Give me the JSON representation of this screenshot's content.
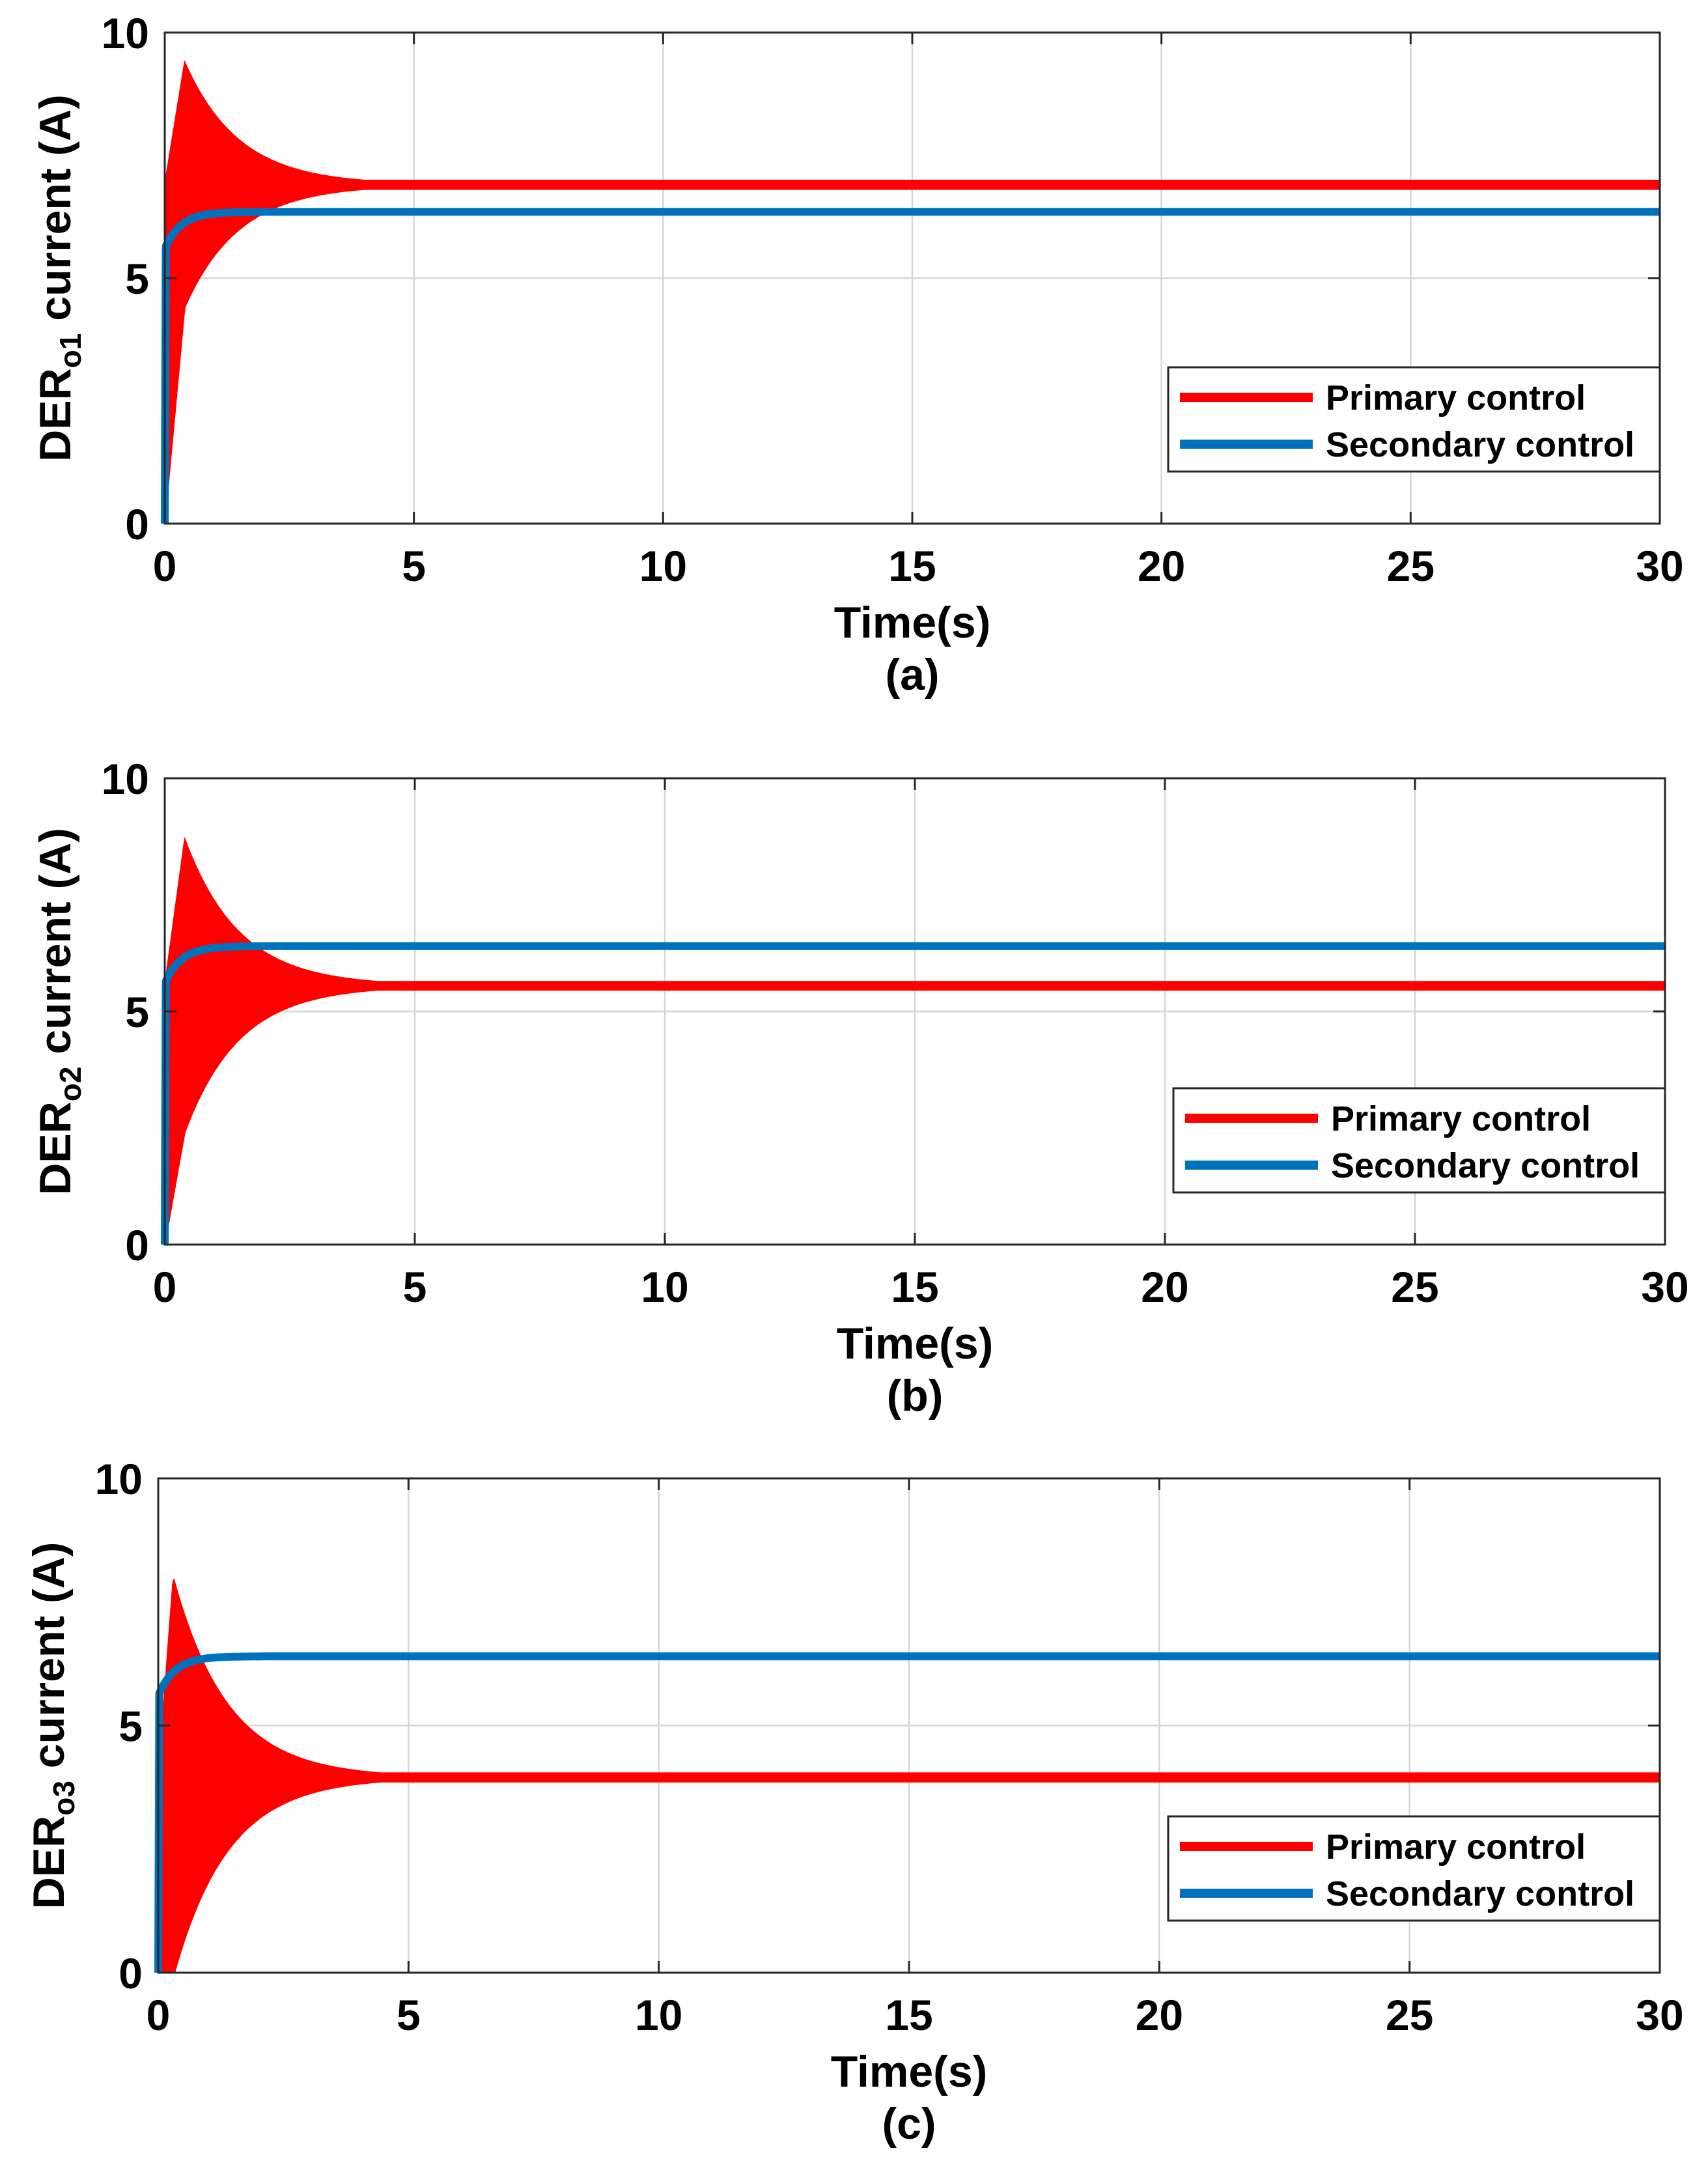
{
  "chart_data": [
    {
      "type": "line",
      "panel_label": "(a)",
      "xlabel": "Time(s)",
      "ylabel": {
        "base": "DER",
        "subscript": "o1",
        "suffix": " current (A)"
      },
      "xlim": [
        0,
        30
      ],
      "ylim": [
        0,
        10
      ],
      "xticks": [
        0,
        5,
        10,
        15,
        20,
        25,
        30
      ],
      "yticks": [
        0,
        5,
        10
      ],
      "grid": true,
      "legend_location": "lower-right",
      "series": [
        {
          "name": "Primary control",
          "color": "#ff0000",
          "behavior": "damped-oscillation",
          "start": 0,
          "steady_state": 6.9,
          "envelope_peak": 9.4,
          "peak_time": 0.4,
          "settling_time": 5
        },
        {
          "name": "Secondary control",
          "color": "#0072bd",
          "behavior": "first-order-rise",
          "start": 0,
          "initial_jump": 5.6,
          "steady_state": 6.35,
          "settling_time": 1.5
        }
      ]
    },
    {
      "type": "line",
      "panel_label": "(b)",
      "xlabel": "Time(s)",
      "ylabel": {
        "base": "DER",
        "subscript": "o2",
        "suffix": " current (A)"
      },
      "xlim": [
        0,
        30
      ],
      "ylim": [
        0,
        10
      ],
      "xticks": [
        0,
        5,
        10,
        15,
        20,
        25,
        30
      ],
      "yticks": [
        0,
        5,
        10
      ],
      "grid": true,
      "legend_location": "lower-right",
      "series": [
        {
          "name": "Primary control",
          "color": "#ff0000",
          "behavior": "damped-oscillation",
          "start": 0,
          "steady_state": 5.55,
          "envelope_peak": 8.7,
          "peak_time": 0.4,
          "settling_time": 5
        },
        {
          "name": "Secondary control",
          "color": "#0072bd",
          "behavior": "first-order-rise",
          "start": 0,
          "initial_jump": 5.6,
          "steady_state": 6.4,
          "settling_time": 1.5
        }
      ]
    },
    {
      "type": "line",
      "panel_label": "(c)",
      "xlabel": "Time(s)",
      "ylabel": {
        "base": "DER",
        "subscript": "o3",
        "suffix": " current (A)"
      },
      "xlim": [
        0,
        30
      ],
      "ylim": [
        0,
        10
      ],
      "xticks": [
        0,
        5,
        10,
        15,
        20,
        25,
        30
      ],
      "yticks": [
        0,
        5,
        10
      ],
      "grid": true,
      "legend_location": "lower-right",
      "series": [
        {
          "name": "Primary control",
          "color": "#ff0000",
          "behavior": "damped-oscillation",
          "start": 0,
          "steady_state": 3.95,
          "envelope_peak": 8.0,
          "peak_time": 0.3,
          "settling_time": 5
        },
        {
          "name": "Secondary control",
          "color": "#0072bd",
          "behavior": "first-order-rise",
          "start": 0,
          "initial_jump": 5.6,
          "steady_state": 6.4,
          "settling_time": 1.5
        }
      ]
    }
  ]
}
